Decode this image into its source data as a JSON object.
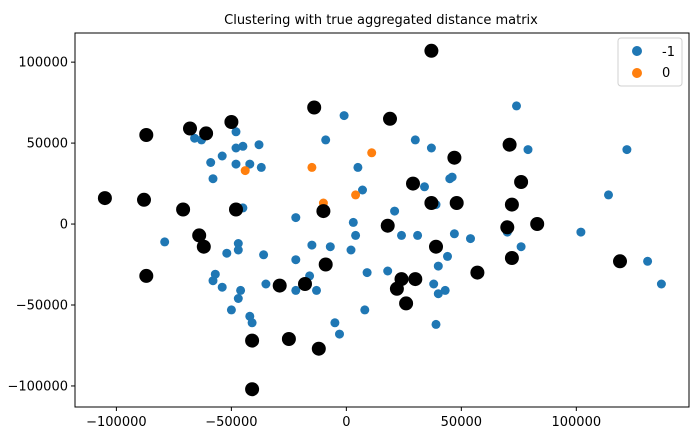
{
  "chart_data": {
    "type": "scatter",
    "title": "Clustering with true aggregated distance matrix",
    "xlabel": "",
    "ylabel": "",
    "xlim": [
      -118000,
      149000
    ],
    "ylim": [
      -113000,
      118000
    ],
    "x_ticks": [
      -100000,
      -50000,
      0,
      50000,
      100000
    ],
    "x_tick_labels": [
      "−100000",
      "−50000",
      "0",
      "50000",
      "100000"
    ],
    "y_ticks": [
      -100000,
      -50000,
      0,
      50000,
      100000
    ],
    "y_tick_labels": [
      "−100000",
      "−50000",
      "0",
      "50000",
      "100000"
    ],
    "grid": false,
    "legend_position": "top-right",
    "series": [
      {
        "name": "-1",
        "color": "#1f77b4",
        "marker": "small-circle",
        "points": [
          [
            -79000,
            -11000
          ],
          [
            -66000,
            53000
          ],
          [
            -63000,
            52000
          ],
          [
            -59000,
            38000
          ],
          [
            -58000,
            28000
          ],
          [
            -58000,
            -35000
          ],
          [
            -57000,
            -31000
          ],
          [
            -54000,
            42000
          ],
          [
            -54000,
            -39000
          ],
          [
            -52000,
            -18000
          ],
          [
            -50000,
            -53000
          ],
          [
            -48000,
            57000
          ],
          [
            -48000,
            47000
          ],
          [
            -48000,
            37000
          ],
          [
            -47000,
            -12000
          ],
          [
            -47000,
            -16000
          ],
          [
            -47000,
            -46000
          ],
          [
            -46000,
            -41000
          ],
          [
            -45000,
            10000
          ],
          [
            -45000,
            48000
          ],
          [
            -42000,
            -57000
          ],
          [
            -42000,
            37000
          ],
          [
            -41000,
            -61000
          ],
          [
            -38000,
            49000
          ],
          [
            -37000,
            35000
          ],
          [
            -36000,
            -19000
          ],
          [
            -35000,
            -37000
          ],
          [
            -22000,
            4000
          ],
          [
            -22000,
            -22000
          ],
          [
            -22000,
            -41000
          ],
          [
            -16000,
            -32000
          ],
          [
            -15000,
            -13000
          ],
          [
            -13000,
            -41000
          ],
          [
            -9000,
            52000
          ],
          [
            -7000,
            -14000
          ],
          [
            -5000,
            -61000
          ],
          [
            -3000,
            -68000
          ],
          [
            -1000,
            67000
          ],
          [
            2000,
            -16000
          ],
          [
            3000,
            1000
          ],
          [
            4000,
            -7000
          ],
          [
            5000,
            35000
          ],
          [
            7000,
            21000
          ],
          [
            8000,
            -53000
          ],
          [
            9000,
            -30000
          ],
          [
            18000,
            -29000
          ],
          [
            21000,
            8000
          ],
          [
            24000,
            -7000
          ],
          [
            30000,
            52000
          ],
          [
            31000,
            -7000
          ],
          [
            34000,
            23000
          ],
          [
            37000,
            47000
          ],
          [
            38000,
            -37000
          ],
          [
            39000,
            -62000
          ],
          [
            39000,
            12000
          ],
          [
            40000,
            -43000
          ],
          [
            40000,
            -26000
          ],
          [
            43000,
            -41000
          ],
          [
            44000,
            -20000
          ],
          [
            45000,
            28000
          ],
          [
            46000,
            29000
          ],
          [
            47000,
            -6000
          ],
          [
            54000,
            -9000
          ],
          [
            70000,
            -5000
          ],
          [
            74000,
            73000
          ],
          [
            76000,
            -14000
          ],
          [
            79000,
            46000
          ],
          [
            102000,
            -5000
          ],
          [
            114000,
            18000
          ],
          [
            122000,
            46000
          ],
          [
            131000,
            -23000
          ],
          [
            137000,
            -37000
          ]
        ]
      },
      {
        "name": "0",
        "color": "#ff7f0e",
        "marker": "small-circle",
        "points": [
          [
            -44000,
            33000
          ],
          [
            -15000,
            35000
          ],
          [
            -10000,
            13000
          ],
          [
            4000,
            18000
          ],
          [
            11000,
            44000
          ]
        ]
      },
      {
        "name": "",
        "color": "#000000",
        "marker": "large-circle",
        "points": [
          [
            -105000,
            16000
          ],
          [
            -88000,
            15000
          ],
          [
            -87000,
            55000
          ],
          [
            -87000,
            -32000
          ],
          [
            -71000,
            9000
          ],
          [
            -68000,
            59000
          ],
          [
            -64000,
            -7000
          ],
          [
            -62000,
            -14000
          ],
          [
            -61000,
            56000
          ],
          [
            -50000,
            63000
          ],
          [
            -48000,
            9000
          ],
          [
            -41000,
            -72000
          ],
          [
            -41000,
            -102000
          ],
          [
            -29000,
            -38000
          ],
          [
            -25000,
            -71000
          ],
          [
            -18000,
            -37000
          ],
          [
            -14000,
            72000
          ],
          [
            -12000,
            -77000
          ],
          [
            -10000,
            8000
          ],
          [
            -9000,
            -25000
          ],
          [
            18000,
            -1000
          ],
          [
            19000,
            65000
          ],
          [
            22000,
            -40000
          ],
          [
            24000,
            -34000
          ],
          [
            26000,
            -49000
          ],
          [
            29000,
            25000
          ],
          [
            30000,
            -34000
          ],
          [
            37000,
            107000
          ],
          [
            37000,
            13000
          ],
          [
            39000,
            -14000
          ],
          [
            47000,
            41000
          ],
          [
            48000,
            13000
          ],
          [
            57000,
            -30000
          ],
          [
            70000,
            -2000
          ],
          [
            71000,
            49000
          ],
          [
            72000,
            12000
          ],
          [
            72000,
            -21000
          ],
          [
            76000,
            26000
          ],
          [
            83000,
            0
          ],
          [
            119000,
            -23000
          ]
        ]
      }
    ]
  }
}
